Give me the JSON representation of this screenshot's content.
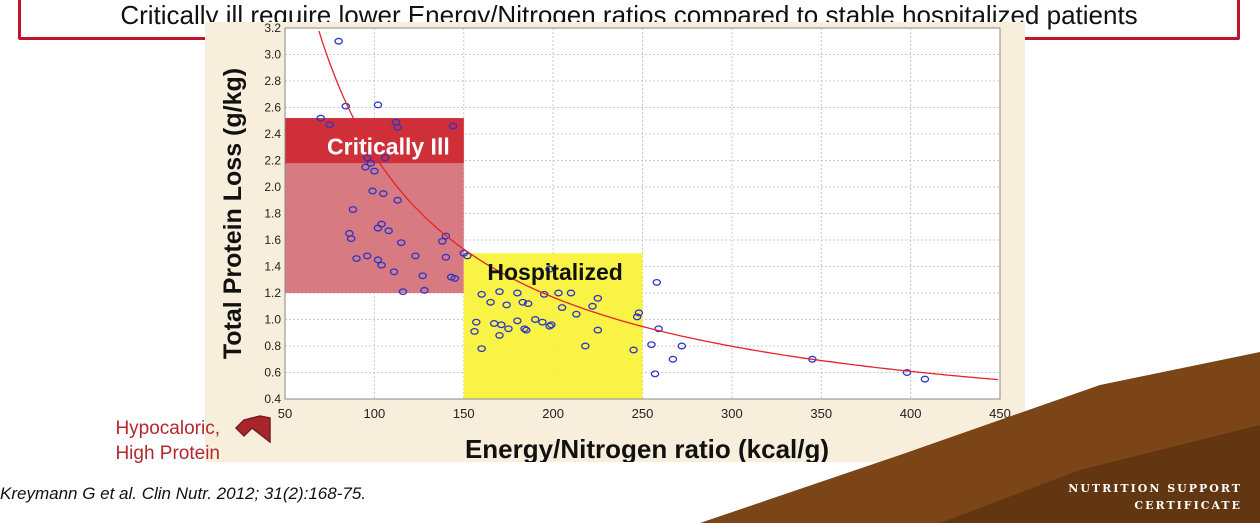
{
  "headline": "Critically ill require lower Energy/Nitrogen ratios compared to stable hospitalized patients",
  "arrow_label": [
    "Hypocaloric,",
    "High Protein"
  ],
  "citation": "Kreymann G et al. Clin Nutr. 2012; 31(2):168-75.",
  "logo_text": [
    "NUTRITION SUPPORT",
    "CERTIFICATE"
  ],
  "colors": {
    "headline_border": "#c0142b",
    "critical_region": "#d46b73",
    "critical_header": "#cf2f38",
    "hospital_region": "#f7f230",
    "curve": "#e3242b",
    "points": "#2b35c9",
    "arrow": "#a8262b",
    "panel": "#f7efdc",
    "brown_band": "#7b4518"
  },
  "chart_data": {
    "type": "scatter",
    "xlabel": "Energy/Nitrogen ratio (kcal/g)",
    "ylabel": "Total Protein Loss  (g/kg)",
    "xlim": [
      50,
      450
    ],
    "ylim": [
      0.4,
      3.2
    ],
    "xticks": [
      50,
      100,
      150,
      200,
      250,
      300,
      350,
      400,
      450
    ],
    "yticks": [
      0.4,
      0.6,
      0.8,
      1.0,
      1.2,
      1.4,
      1.6,
      1.8,
      2.0,
      2.2,
      2.4,
      2.6,
      2.8,
      3.0,
      3.2
    ],
    "grid": true,
    "regions": [
      {
        "label": "Critically Ill",
        "x": [
          50,
          150
        ],
        "y": [
          1.2,
          2.52
        ]
      },
      {
        "label": "Hospitalized",
        "x": [
          150,
          250
        ],
        "y": [
          0.4,
          1.5
        ]
      }
    ],
    "fit_curve": {
      "form": "y = a * x^b",
      "a": 170,
      "b": -0.94
    },
    "points": [
      [
        80,
        3.1
      ],
      [
        84,
        2.61
      ],
      [
        102,
        2.62
      ],
      [
        70,
        2.52
      ],
      [
        75,
        2.47
      ],
      [
        112,
        2.49
      ],
      [
        113,
        2.45
      ],
      [
        144,
        2.46
      ],
      [
        96,
        2.22
      ],
      [
        98,
        2.18
      ],
      [
        95,
        2.15
      ],
      [
        100,
        2.12
      ],
      [
        106,
        2.22
      ],
      [
        99,
        1.97
      ],
      [
        105,
        1.95
      ],
      [
        113,
        1.9
      ],
      [
        88,
        1.83
      ],
      [
        86,
        1.65
      ],
      [
        87,
        1.61
      ],
      [
        104,
        1.72
      ],
      [
        102,
        1.69
      ],
      [
        108,
        1.67
      ],
      [
        115,
        1.58
      ],
      [
        138,
        1.59
      ],
      [
        140,
        1.63
      ],
      [
        90,
        1.46
      ],
      [
        96,
        1.48
      ],
      [
        102,
        1.45
      ],
      [
        104,
        1.41
      ],
      [
        111,
        1.36
      ],
      [
        123,
        1.48
      ],
      [
        140,
        1.47
      ],
      [
        143,
        1.32
      ],
      [
        145,
        1.31
      ],
      [
        127,
        1.33
      ],
      [
        128,
        1.22
      ],
      [
        116,
        1.21
      ],
      [
        150,
        1.5
      ],
      [
        152,
        1.48
      ],
      [
        160,
        1.19
      ],
      [
        170,
        1.21
      ],
      [
        180,
        1.2
      ],
      [
        195,
        1.19
      ],
      [
        198,
        1.38
      ],
      [
        203,
        1.2
      ],
      [
        210,
        1.2
      ],
      [
        225,
        1.16
      ],
      [
        165,
        1.13
      ],
      [
        174,
        1.11
      ],
      [
        183,
        1.13
      ],
      [
        186,
        1.12
      ],
      [
        205,
        1.09
      ],
      [
        222,
        1.1
      ],
      [
        213,
        1.04
      ],
      [
        157,
        0.98
      ],
      [
        156,
        0.91
      ],
      [
        167,
        0.97
      ],
      [
        171,
        0.96
      ],
      [
        175,
        0.93
      ],
      [
        180,
        0.99
      ],
      [
        184,
        0.93
      ],
      [
        190,
        1.0
      ],
      [
        194,
        0.98
      ],
      [
        198,
        0.95
      ],
      [
        199,
        0.96
      ],
      [
        160,
        0.78
      ],
      [
        170,
        0.88
      ],
      [
        185,
        0.92
      ],
      [
        218,
        0.8
      ],
      [
        225,
        0.92
      ],
      [
        245,
        0.77
      ],
      [
        247,
        1.02
      ],
      [
        248,
        1.05
      ],
      [
        258,
        1.28
      ],
      [
        259,
        0.93
      ],
      [
        255,
        0.81
      ],
      [
        257,
        0.59
      ],
      [
        267,
        0.7
      ],
      [
        272,
        0.8
      ],
      [
        345,
        0.7
      ],
      [
        398,
        0.6
      ],
      [
        408,
        0.55
      ]
    ]
  }
}
